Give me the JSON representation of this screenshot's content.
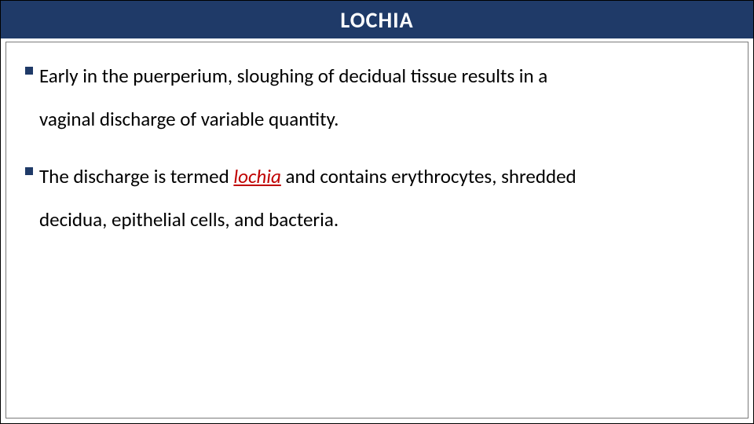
{
  "slide": {
    "title": "LOCHIA",
    "title_bg": "#1f3a68",
    "title_color": "#ffffff",
    "title_fontsize": 28,
    "bullet_color": "#1f3a68",
    "text_color": "#000000",
    "text_fontsize": 25,
    "lochia_color": "#c00000",
    "bullets": [
      {
        "line1": "Early in the puerperium, sloughing of decidual tissue results in a",
        "line2": "vaginal discharge of variable quantity."
      },
      {
        "line1_pre": "The discharge is termed ",
        "line1_em": "lochia",
        "line1_post": " and contains erythrocytes, shredded",
        "line2": "decidua, epithelial cells, and bacteria."
      }
    ]
  }
}
